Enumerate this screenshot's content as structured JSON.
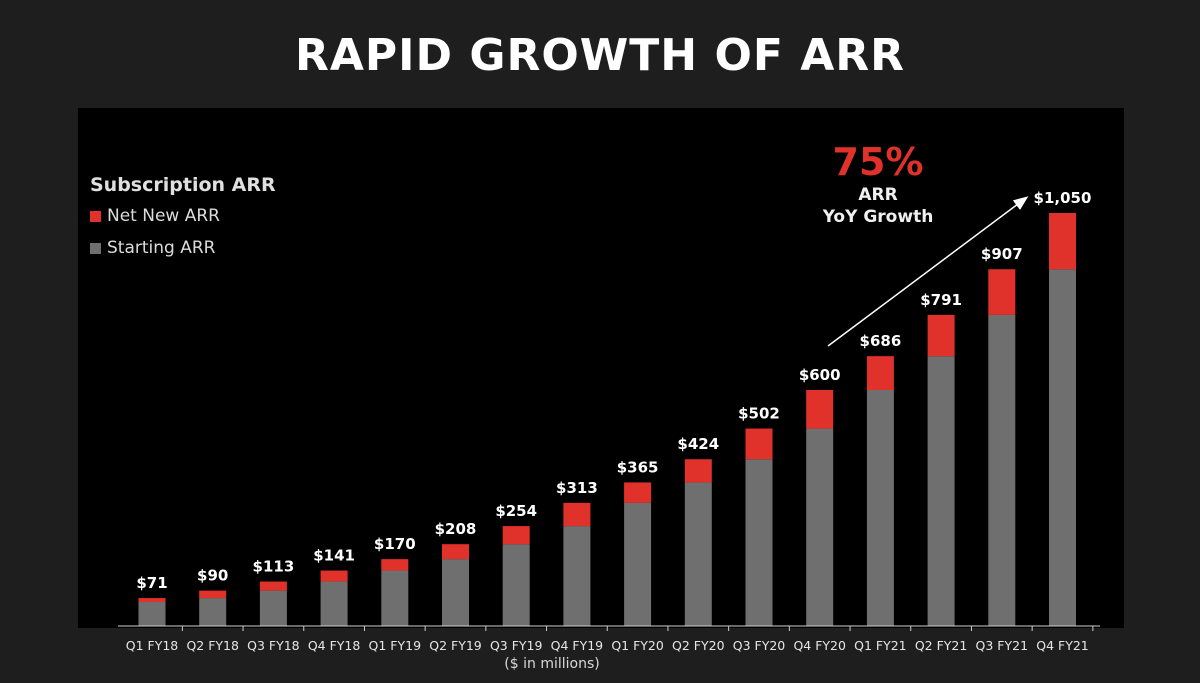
{
  "chart_data": {
    "type": "bar",
    "stacked": true,
    "title": "RAPID GROWTH OF ARR",
    "legend_title": "Subscription ARR",
    "categories": [
      "Q1 FY18",
      "Q2 FY18",
      "Q3 FY18",
      "Q4 FY18",
      "Q1 FY19",
      "Q2 FY19",
      "Q3 FY19",
      "Q4 FY19",
      "Q1 FY20",
      "Q2 FY20",
      "Q3 FY20",
      "Q4 FY20",
      "Q1 FY21",
      "Q2 FY21",
      "Q3 FY21",
      "Q4 FY21"
    ],
    "series": [
      {
        "name": "Starting ARR",
        "color": "#6f6f6f",
        "values": [
          61,
          71,
          90,
          113,
          141,
          170,
          208,
          254,
          313,
          365,
          424,
          502,
          600,
          686,
          791,
          907
        ]
      },
      {
        "name": "Net New ARR",
        "color": "#e0322a",
        "values": [
          10,
          19,
          23,
          28,
          29,
          38,
          46,
          59,
          52,
          59,
          78,
          98,
          86,
          105,
          116,
          143
        ]
      }
    ],
    "totals": [
      "$71",
      "$90",
      "$113",
      "$141",
      "$170",
      "$208",
      "$254",
      "$313",
      "$365",
      "$424",
      "$502",
      "$600",
      "$686",
      "$791",
      "$907",
      "$1,050"
    ],
    "total_values": [
      71,
      90,
      113,
      141,
      170,
      208,
      254,
      313,
      365,
      424,
      502,
      600,
      686,
      791,
      907,
      1050
    ],
    "ylim": [
      0,
      1100
    ],
    "xlabel": "($ in millions)",
    "annotation": {
      "value": "75%",
      "line1": "ARR",
      "line2": "YoY Growth"
    }
  },
  "colors": {
    "background": "#1e1e1e",
    "panel": "#000000",
    "accent": "#e0322a",
    "bar": "#6f6f6f"
  }
}
